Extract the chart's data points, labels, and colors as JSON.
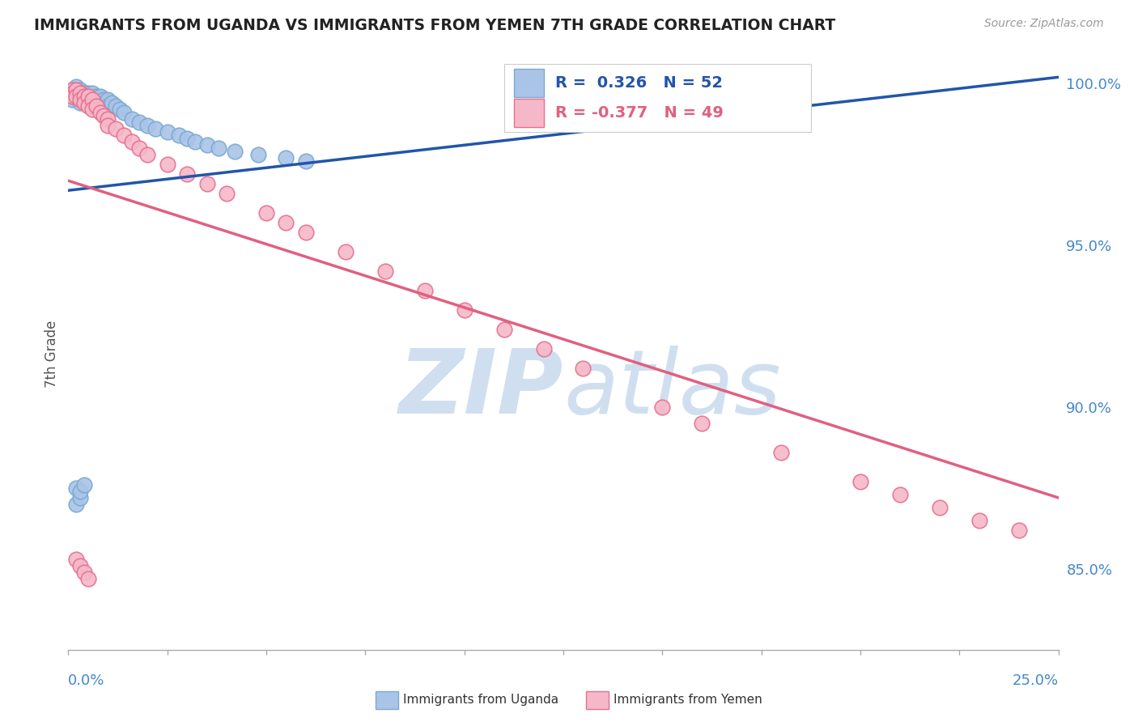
{
  "title": "IMMIGRANTS FROM UGANDA VS IMMIGRANTS FROM YEMEN 7TH GRADE CORRELATION CHART",
  "source": "Source: ZipAtlas.com",
  "ylabel": "7th Grade",
  "right_yticks": [
    "85.0%",
    "90.0%",
    "95.0%",
    "100.0%"
  ],
  "right_ytick_vals": [
    0.85,
    0.9,
    0.95,
    1.0
  ],
  "xlim": [
    0.0,
    0.25
  ],
  "ylim": [
    0.825,
    1.008
  ],
  "uganda_color": "#aac4e8",
  "uganda_edge": "#7aaad0",
  "yemen_color": "#f5b8c8",
  "yemen_edge": "#e87090",
  "uganda_line_color": "#2255aa",
  "yemen_line_color": "#e06080",
  "watermark_color": "#d0dff0",
  "background_color": "#ffffff",
  "grid_color": "#cccccc",
  "uganda_x": [
    0.001,
    0.001,
    0.001,
    0.001,
    0.002,
    0.002,
    0.002,
    0.002,
    0.003,
    0.003,
    0.003,
    0.003,
    0.004,
    0.004,
    0.004,
    0.005,
    0.005,
    0.005,
    0.006,
    0.006,
    0.006,
    0.007,
    0.007,
    0.008,
    0.008,
    0.009,
    0.009,
    0.01,
    0.01,
    0.011,
    0.012,
    0.013,
    0.014,
    0.016,
    0.018,
    0.02,
    0.022,
    0.025,
    0.028,
    0.03,
    0.032,
    0.035,
    0.038,
    0.042,
    0.048,
    0.055,
    0.06,
    0.002,
    0.002,
    0.003,
    0.003,
    0.004
  ],
  "uganda_y": [
    0.998,
    0.997,
    0.996,
    0.995,
    0.999,
    0.998,
    0.997,
    0.996,
    0.998,
    0.997,
    0.996,
    0.994,
    0.997,
    0.996,
    0.995,
    0.997,
    0.996,
    0.994,
    0.997,
    0.995,
    0.993,
    0.996,
    0.994,
    0.996,
    0.994,
    0.995,
    0.993,
    0.995,
    0.993,
    0.994,
    0.993,
    0.992,
    0.991,
    0.989,
    0.988,
    0.987,
    0.986,
    0.985,
    0.984,
    0.983,
    0.982,
    0.981,
    0.98,
    0.979,
    0.978,
    0.977,
    0.976,
    0.875,
    0.87,
    0.872,
    0.874,
    0.876
  ],
  "yemen_x": [
    0.001,
    0.001,
    0.001,
    0.002,
    0.002,
    0.003,
    0.003,
    0.004,
    0.004,
    0.005,
    0.005,
    0.006,
    0.006,
    0.007,
    0.008,
    0.009,
    0.01,
    0.01,
    0.012,
    0.014,
    0.016,
    0.018,
    0.02,
    0.025,
    0.03,
    0.035,
    0.04,
    0.05,
    0.055,
    0.06,
    0.07,
    0.08,
    0.09,
    0.1,
    0.11,
    0.12,
    0.13,
    0.15,
    0.16,
    0.18,
    0.2,
    0.21,
    0.22,
    0.23,
    0.24,
    0.002,
    0.003,
    0.004,
    0.005
  ],
  "yemen_y": [
    0.998,
    0.997,
    0.996,
    0.998,
    0.996,
    0.997,
    0.995,
    0.996,
    0.994,
    0.996,
    0.993,
    0.995,
    0.992,
    0.993,
    0.991,
    0.99,
    0.989,
    0.987,
    0.986,
    0.984,
    0.982,
    0.98,
    0.978,
    0.975,
    0.972,
    0.969,
    0.966,
    0.96,
    0.957,
    0.954,
    0.948,
    0.942,
    0.936,
    0.93,
    0.924,
    0.918,
    0.912,
    0.9,
    0.895,
    0.886,
    0.877,
    0.873,
    0.869,
    0.865,
    0.862,
    0.853,
    0.851,
    0.849,
    0.847
  ],
  "uganda_trend_x": [
    0.0,
    0.25
  ],
  "uganda_trend_y": [
    0.967,
    1.002
  ],
  "yemen_trend_x": [
    0.0,
    0.25
  ],
  "yemen_trend_y": [
    0.97,
    0.872
  ]
}
